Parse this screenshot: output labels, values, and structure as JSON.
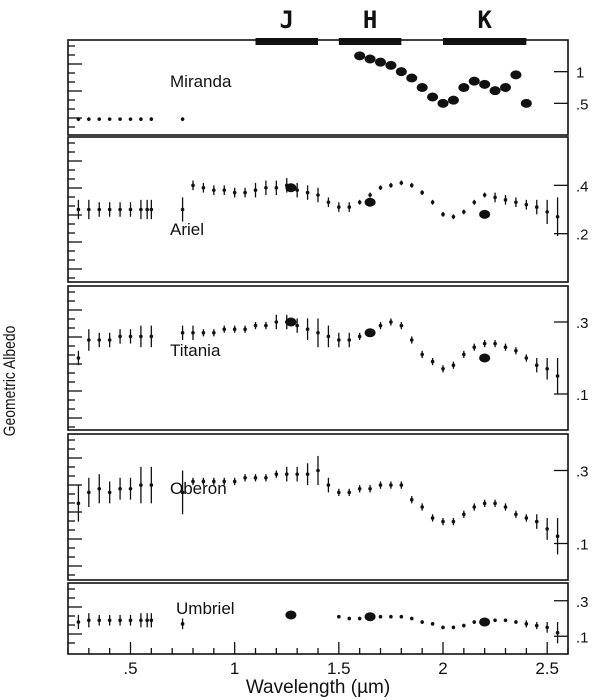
{
  "chart_data": {
    "type": "scatter",
    "title": "",
    "xlabel": "Wavelength (µm)",
    "ylabel": "Geometric Albedo",
    "xlim": [
      0.2,
      2.6
    ],
    "x_ticks": [
      ".5",
      "1",
      "1.5",
      "2",
      "2.5"
    ],
    "band_labels": [
      {
        "name": "J",
        "range": [
          1.1,
          1.4
        ]
      },
      {
        "name": "H",
        "range": [
          1.5,
          1.8
        ]
      },
      {
        "name": "K",
        "range": [
          2.0,
          2.4
        ]
      }
    ],
    "panels": [
      {
        "name": "Miranda",
        "right_ticks": [
          "1",
          ".5"
        ],
        "ylim": [
          0,
          1.5
        ],
        "yticks": [
          1,
          0.5
        ],
        "series": [
          {
            "x": [
              0.25,
              0.3,
              0.35,
              0.4,
              0.45,
              0.5,
              0.55,
              0.6,
              0.75
            ],
            "y": [
              0.25,
              0.25,
              0.25,
              0.25,
              0.25,
              0.25,
              0.25,
              0.25,
              0.25
            ],
            "err": [
              0.03,
              0.03,
              0.02,
              0.02,
              0.02,
              0.02,
              0.03,
              0.03,
              0.03
            ]
          },
          {
            "x": [
              1.6,
              1.65,
              1.7,
              1.75,
              1.8,
              1.85,
              1.9,
              1.95,
              2.0,
              2.05,
              2.1,
              2.15,
              2.2,
              2.25,
              2.3,
              2.35,
              2.4
            ],
            "y": [
              1.25,
              1.2,
              1.15,
              1.1,
              1.0,
              0.9,
              0.75,
              0.6,
              0.5,
              0.55,
              0.75,
              0.85,
              0.8,
              0.7,
              0.75,
              0.95,
              0.5
            ],
            "err": [
              0.06,
              0.08,
              0.1,
              0.12,
              0.15,
              0.18,
              0.2,
              0.22,
              0.12,
              0.12,
              0.2,
              0.2,
              0.22,
              0.18,
              0.15,
              0.18,
              0.2
            ]
          }
        ]
      },
      {
        "name": "Ariel",
        "right_ticks": [
          ".4",
          ".2"
        ],
        "ylim": [
          0,
          0.6
        ],
        "yticks": [
          0.4,
          0.2
        ],
        "series": [
          {
            "x": [
              0.25,
              0.3,
              0.35,
              0.4,
              0.45,
              0.5,
              0.55,
              0.58,
              0.6,
              0.75,
              0.8,
              0.85,
              0.9,
              0.95,
              1.0,
              1.05,
              1.1,
              1.15,
              1.2,
              1.25,
              1.3,
              1.35,
              1.4,
              1.45,
              1.5,
              1.55,
              1.6,
              1.65,
              1.7,
              1.75,
              1.8,
              1.85,
              1.9,
              1.95,
              2.0,
              2.05,
              2.1,
              2.15,
              2.2,
              2.25,
              2.3,
              2.35,
              2.4,
              2.45,
              2.5,
              2.55
            ],
            "y": [
              0.3,
              0.3,
              0.3,
              0.3,
              0.3,
              0.3,
              0.3,
              0.3,
              0.3,
              0.3,
              0.4,
              0.39,
              0.38,
              0.38,
              0.37,
              0.37,
              0.38,
              0.39,
              0.39,
              0.4,
              0.38,
              0.37,
              0.36,
              0.33,
              0.31,
              0.31,
              0.33,
              0.36,
              0.39,
              0.4,
              0.41,
              0.4,
              0.37,
              0.33,
              0.28,
              0.27,
              0.29,
              0.33,
              0.36,
              0.35,
              0.34,
              0.33,
              0.32,
              0.31,
              0.29,
              0.27
            ],
            "err": [
              0.04,
              0.04,
              0.03,
              0.03,
              0.03,
              0.03,
              0.04,
              0.04,
              0.04,
              0.05,
              0.02,
              0.02,
              0.02,
              0.02,
              0.02,
              0.02,
              0.03,
              0.03,
              0.03,
              0.03,
              0.03,
              0.03,
              0.03,
              0.02,
              0.02,
              0.02,
              0.01,
              0.01,
              0.01,
              0.01,
              0.01,
              0.01,
              0.01,
              0.01,
              0.01,
              0.01,
              0.01,
              0.01,
              0.01,
              0.02,
              0.02,
              0.02,
              0.02,
              0.03,
              0.05,
              0.08
            ]
          },
          {
            "x": [
              1.27,
              1.65,
              2.2
            ],
            "y": [
              0.39,
              0.33,
              0.28
            ],
            "err": [
              0,
              0,
              0
            ]
          }
        ]
      },
      {
        "name": "Titania",
        "right_ticks": [
          ".3",
          ".1"
        ],
        "ylim": [
          0,
          0.4
        ],
        "yticks": [
          0.3,
          0.1
        ],
        "series": [
          {
            "x": [
              0.25,
              0.3,
              0.35,
              0.4,
              0.45,
              0.5,
              0.55,
              0.6,
              0.75,
              0.8,
              0.85,
              0.9,
              0.95,
              1.0,
              1.05,
              1.1,
              1.15,
              1.2,
              1.25,
              1.3,
              1.35,
              1.4,
              1.45,
              1.5,
              1.55,
              1.6,
              1.65,
              1.7,
              1.75,
              1.8,
              1.85,
              1.9,
              1.95,
              2.0,
              2.05,
              2.1,
              2.15,
              2.2,
              2.25,
              2.3,
              2.35,
              2.4,
              2.45,
              2.5,
              2.55
            ],
            "y": [
              0.2,
              0.25,
              0.25,
              0.25,
              0.26,
              0.26,
              0.26,
              0.26,
              0.27,
              0.27,
              0.27,
              0.27,
              0.28,
              0.28,
              0.28,
              0.29,
              0.29,
              0.3,
              0.3,
              0.29,
              0.28,
              0.27,
              0.26,
              0.25,
              0.25,
              0.26,
              0.27,
              0.29,
              0.3,
              0.29,
              0.25,
              0.21,
              0.19,
              0.17,
              0.18,
              0.21,
              0.23,
              0.24,
              0.24,
              0.23,
              0.22,
              0.2,
              0.18,
              0.17,
              0.15
            ],
            "err": [
              0.02,
              0.03,
              0.02,
              0.02,
              0.02,
              0.02,
              0.03,
              0.03,
              0.02,
              0.02,
              0.01,
              0.01,
              0.01,
              0.01,
              0.01,
              0.01,
              0.01,
              0.02,
              0.02,
              0.02,
              0.03,
              0.04,
              0.03,
              0.02,
              0.02,
              0.01,
              0.01,
              0.01,
              0.01,
              0.01,
              0.01,
              0.01,
              0.01,
              0.01,
              0.01,
              0.01,
              0.01,
              0.01,
              0.01,
              0.01,
              0.01,
              0.01,
              0.02,
              0.03,
              0.05
            ]
          },
          {
            "x": [
              1.27,
              1.65,
              2.2
            ],
            "y": [
              0.3,
              0.27,
              0.2
            ],
            "err": [
              0,
              0,
              0
            ]
          }
        ]
      },
      {
        "name": "Oberon",
        "right_ticks": [
          ".3",
          ".1"
        ],
        "ylim": [
          0,
          0.4
        ],
        "yticks": [
          0.3,
          0.1
        ],
        "series": [
          {
            "x": [
              0.25,
              0.3,
              0.35,
              0.4,
              0.45,
              0.5,
              0.55,
              0.6,
              0.75,
              0.8,
              0.85,
              0.9,
              0.95,
              1.0,
              1.05,
              1.1,
              1.15,
              1.2,
              1.25,
              1.3,
              1.35,
              1.4,
              1.45,
              1.5,
              1.55,
              1.6,
              1.65,
              1.7,
              1.75,
              1.8,
              1.85,
              1.9,
              1.95,
              2.0,
              2.05,
              2.1,
              2.15,
              2.2,
              2.25,
              2.3,
              2.35,
              2.4,
              2.45,
              2.5,
              2.55
            ],
            "y": [
              0.21,
              0.24,
              0.25,
              0.24,
              0.25,
              0.25,
              0.26,
              0.26,
              0.24,
              0.27,
              0.27,
              0.27,
              0.27,
              0.27,
              0.28,
              0.28,
              0.28,
              0.29,
              0.29,
              0.29,
              0.29,
              0.3,
              0.26,
              0.24,
              0.24,
              0.25,
              0.25,
              0.26,
              0.26,
              0.26,
              0.22,
              0.2,
              0.17,
              0.16,
              0.16,
              0.18,
              0.2,
              0.21,
              0.21,
              0.2,
              0.18,
              0.17,
              0.16,
              0.14,
              0.12
            ],
            "err": [
              0.05,
              0.04,
              0.04,
              0.03,
              0.03,
              0.03,
              0.05,
              0.05,
              0.06,
              0.01,
              0.01,
              0.01,
              0.01,
              0.01,
              0.01,
              0.01,
              0.01,
              0.01,
              0.02,
              0.02,
              0.03,
              0.04,
              0.02,
              0.01,
              0.01,
              0.01,
              0.01,
              0.01,
              0.01,
              0.01,
              0.01,
              0.01,
              0.01,
              0.01,
              0.01,
              0.01,
              0.01,
              0.01,
              0.01,
              0.01,
              0.01,
              0.01,
              0.02,
              0.03,
              0.05
            ]
          }
        ]
      },
      {
        "name": "Umbriel",
        "right_ticks": [
          ".3",
          ".1"
        ],
        "ylim": [
          0,
          0.4
        ],
        "yticks": [
          0.3,
          0.1
        ],
        "series": [
          {
            "x": [
              0.25,
              0.3,
              0.35,
              0.4,
              0.45,
              0.5,
              0.55,
              0.58,
              0.6,
              0.75,
              1.5,
              1.55,
              1.6,
              1.65,
              1.7,
              1.75,
              1.8,
              1.85,
              1.9,
              1.95,
              2.0,
              2.05,
              2.1,
              2.15,
              2.2,
              2.25,
              2.3,
              2.35,
              2.4,
              2.45,
              2.5,
              2.55
            ],
            "y": [
              0.18,
              0.19,
              0.19,
              0.19,
              0.19,
              0.19,
              0.19,
              0.19,
              0.19,
              0.17,
              0.21,
              0.2,
              0.2,
              0.21,
              0.21,
              0.21,
              0.21,
              0.2,
              0.18,
              0.17,
              0.15,
              0.15,
              0.16,
              0.18,
              0.19,
              0.19,
              0.19,
              0.18,
              0.17,
              0.16,
              0.15,
              0.12
            ],
            "err": [
              0.04,
              0.04,
              0.03,
              0.03,
              0.03,
              0.03,
              0.04,
              0.04,
              0.04,
              0.03,
              0.01,
              0.01,
              0.01,
              0.01,
              0.01,
              0.01,
              0.01,
              0.01,
              0.01,
              0.01,
              0.01,
              0.01,
              0.01,
              0.01,
              0.01,
              0.01,
              0.01,
              0.01,
              0.02,
              0.02,
              0.03,
              0.06
            ]
          },
          {
            "x": [
              1.27,
              1.65,
              2.2
            ],
            "y": [
              0.22,
              0.21,
              0.18
            ],
            "err": [
              0,
              0,
              0
            ]
          }
        ]
      }
    ]
  }
}
